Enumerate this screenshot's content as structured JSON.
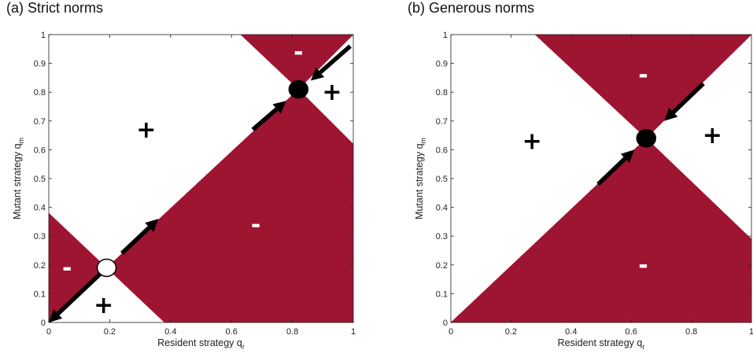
{
  "colors": {
    "region_fill": "#9e1531",
    "arrow": "#000000",
    "stable_point": "#000000",
    "unstable_point_fill": "#ffffff",
    "plus_label": "#000000",
    "minus_label": "#ffffff"
  },
  "chart_data": [
    {
      "type": "area",
      "title": "(a) Strict norms",
      "xlabel": "Resident strategy q",
      "xlabel_sub": "r",
      "ylabel": "Mutant strategy q",
      "ylabel_sub": "m",
      "xlim": [
        0,
        1
      ],
      "ylim": [
        0,
        1
      ],
      "xticks": [
        0,
        0.2,
        0.4,
        0.6,
        0.8,
        1
      ],
      "xtick_labels": [
        "0",
        "0.2",
        "0.4",
        "0.6",
        "0.8",
        "1"
      ],
      "yticks": [
        0,
        0.1,
        0.2,
        0.3,
        0.4,
        0.5,
        0.6,
        0.7,
        0.8,
        0.9,
        1
      ],
      "ytick_labels": [
        "0",
        "0.1",
        "0.2",
        "0.3",
        "0.4",
        "0.5",
        "0.6",
        "0.7",
        "0.8",
        "0.9",
        "1"
      ],
      "shaded_regions": [
        [
          [
            0,
            0
          ],
          [
            0,
            0.38
          ],
          [
            0.19,
            0.19
          ]
        ],
        [
          [
            0.19,
            0.19
          ],
          [
            0.38,
            0
          ],
          [
            1,
            0
          ],
          [
            1,
            0.62
          ],
          [
            0.82,
            0.81
          ]
        ],
        [
          [
            0.63,
            1
          ],
          [
            1,
            1
          ],
          [
            0.82,
            0.81
          ]
        ]
      ],
      "equilibria": [
        {
          "x": 0.19,
          "y": 0.19,
          "stability": "unstable"
        },
        {
          "x": 0.82,
          "y": 0.81,
          "stability": "stable"
        }
      ],
      "arrows": [
        {
          "from": [
            0.17,
            0.17
          ],
          "to": [
            0.0,
            0.0
          ]
        },
        {
          "from": [
            0.24,
            0.24
          ],
          "to": [
            0.36,
            0.36
          ]
        },
        {
          "from": [
            0.67,
            0.67
          ],
          "to": [
            0.78,
            0.77
          ]
        },
        {
          "from": [
            0.99,
            0.96
          ],
          "to": [
            0.86,
            0.84
          ]
        }
      ],
      "sign_labels": [
        {
          "text": "+",
          "x": 0.32,
          "y": 0.67
        },
        {
          "text": "+",
          "x": 0.93,
          "y": 0.8
        },
        {
          "text": "+",
          "x": 0.18,
          "y": 0.06
        },
        {
          "text": "-",
          "x": 0.06,
          "y": 0.19
        },
        {
          "text": "-",
          "x": 0.68,
          "y": 0.34
        },
        {
          "text": "-",
          "x": 0.82,
          "y": 0.94
        }
      ]
    },
    {
      "type": "area",
      "title": "(b) Generous norms",
      "xlabel": "Resident strategy q",
      "xlabel_sub": "r",
      "ylabel": "Mutant strategy q",
      "ylabel_sub": "m",
      "xlim": [
        0,
        1
      ],
      "ylim": [
        0,
        1
      ],
      "xticks": [
        0,
        0.2,
        0.4,
        0.6,
        0.8,
        1
      ],
      "xtick_labels": [
        "0",
        "0.2",
        "0.4",
        "0.6",
        "0.8",
        "1"
      ],
      "yticks": [
        0,
        0.1,
        0.2,
        0.3,
        0.4,
        0.5,
        0.6,
        0.7,
        0.8,
        0.9,
        1
      ],
      "ytick_labels": [
        "0",
        "0.1",
        "0.2",
        "0.3",
        "0.4",
        "0.5",
        "0.6",
        "0.7",
        "0.8",
        "0.9",
        "1"
      ],
      "shaded_regions": [
        [
          [
            0.28,
            1
          ],
          [
            1,
            1
          ],
          [
            0.65,
            0.64
          ]
        ],
        [
          [
            0,
            0
          ],
          [
            1,
            0
          ],
          [
            1,
            0.29
          ],
          [
            0.65,
            0.64
          ]
        ]
      ],
      "equilibria": [
        {
          "x": 0.65,
          "y": 0.64,
          "stability": "stable"
        }
      ],
      "arrows": [
        {
          "from": [
            0.49,
            0.48
          ],
          "to": [
            0.61,
            0.6
          ]
        },
        {
          "from": [
            0.84,
            0.83
          ],
          "to": [
            0.71,
            0.7
          ]
        }
      ],
      "sign_labels": [
        {
          "text": "+",
          "x": 0.27,
          "y": 0.63
        },
        {
          "text": "+",
          "x": 0.87,
          "y": 0.65
        },
        {
          "text": "-",
          "x": 0.64,
          "y": 0.86
        },
        {
          "text": "-",
          "x": 0.64,
          "y": 0.2
        }
      ]
    }
  ]
}
